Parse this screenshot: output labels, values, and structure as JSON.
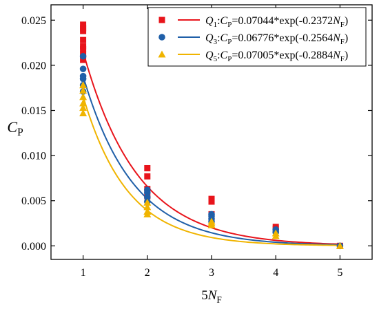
{
  "chart_data": {
    "type": "scatter",
    "xlabel": "5N_F",
    "ylabel": "C_P",
    "xlim": [
      0.5,
      5.5
    ],
    "ylim": [
      -0.0015,
      0.0267
    ],
    "x_ticks": [
      1,
      2,
      3,
      4,
      5
    ],
    "x_tick_labels": [
      "1",
      "2",
      "3",
      "4",
      "5"
    ],
    "y_ticks": [
      0.0,
      0.005,
      0.01,
      0.015,
      0.02,
      0.025
    ],
    "y_tick_labels": [
      "0.000",
      "0.005",
      "0.010",
      "0.015",
      "0.020",
      "0.025"
    ],
    "grid": false,
    "legend_position": "top-right",
    "series": [
      {
        "name": "Q1",
        "color": "#e8141b",
        "marker": "square",
        "legend_label": "Q1:CP=0.07044*exp(-0.2372NF)",
        "points": [
          [
            1,
            0.0245
          ],
          [
            1,
            0.0241
          ],
          [
            1,
            0.0238
          ],
          [
            1,
            0.0228
          ],
          [
            1,
            0.0221
          ],
          [
            1,
            0.0218
          ],
          [
            1,
            0.0212
          ],
          [
            1,
            0.0206
          ],
          [
            2,
            0.0086
          ],
          [
            2,
            0.0077
          ],
          [
            2,
            0.0063
          ],
          [
            2,
            0.0055
          ],
          [
            3,
            0.0052
          ],
          [
            3,
            0.0049
          ],
          [
            3,
            0.0035
          ],
          [
            3,
            0.0029
          ],
          [
            4,
            0.0021
          ],
          [
            4,
            0.0019
          ],
          [
            5,
            0.0
          ]
        ],
        "fit": {
          "a": 0.07044,
          "b": -0.2372,
          "x_scale": 5
        }
      },
      {
        "name": "Q3",
        "color": "#1f5fa8",
        "marker": "circle",
        "legend_label": "Q3:CP=0.06776*exp(-0.2564NF)",
        "points": [
          [
            1,
            0.021
          ],
          [
            1,
            0.0196
          ],
          [
            1,
            0.0188
          ],
          [
            1,
            0.0185
          ],
          [
            1,
            0.0178
          ],
          [
            1,
            0.0171
          ],
          [
            2,
            0.0062
          ],
          [
            2,
            0.0059
          ],
          [
            2,
            0.0054
          ],
          [
            2,
            0.0049
          ],
          [
            3,
            0.0035
          ],
          [
            3,
            0.0033
          ],
          [
            3,
            0.003
          ],
          [
            3,
            0.0027
          ],
          [
            4,
            0.0018
          ],
          [
            4,
            0.0015
          ],
          [
            5,
            0.0
          ]
        ],
        "fit": {
          "a": 0.06776,
          "b": -0.2564,
          "x_scale": 5
        }
      },
      {
        "name": "Q5",
        "color": "#f0b400",
        "marker": "triangle",
        "legend_label": "Q5:CP=0.07005*exp(-0.2884NF)",
        "points": [
          [
            1,
            0.0178
          ],
          [
            1,
            0.0172
          ],
          [
            1,
            0.0165
          ],
          [
            1,
            0.0158
          ],
          [
            1,
            0.0153
          ],
          [
            1,
            0.0147
          ],
          [
            2,
            0.0048
          ],
          [
            2,
            0.0043
          ],
          [
            2,
            0.0038
          ],
          [
            2,
            0.0035
          ],
          [
            3,
            0.0027
          ],
          [
            3,
            0.0025
          ],
          [
            3,
            0.0023
          ],
          [
            4,
            0.0014
          ],
          [
            4,
            0.0011
          ],
          [
            5,
            0.0
          ]
        ],
        "fit": {
          "a": 0.07005,
          "b": -0.2884,
          "x_scale": 5
        }
      }
    ]
  }
}
